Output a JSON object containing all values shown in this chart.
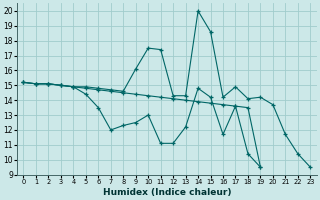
{
  "xlabel": "Humidex (Indice chaleur)",
  "bg_color": "#cce8e8",
  "grid_color": "#a0cccc",
  "line_color": "#006666",
  "xlim": [
    -0.5,
    23.5
  ],
  "ylim": [
    9.0,
    20.5
  ],
  "xticks": [
    0,
    1,
    2,
    3,
    4,
    5,
    6,
    7,
    8,
    9,
    10,
    11,
    12,
    13,
    14,
    15,
    16,
    17,
    18,
    19,
    20,
    21,
    22,
    23
  ],
  "yticks": [
    9,
    10,
    11,
    12,
    13,
    14,
    15,
    16,
    17,
    18,
    19,
    20
  ],
  "line1": [
    [
      0,
      15.2
    ],
    [
      1,
      15.1
    ],
    [
      2,
      15.1
    ],
    [
      3,
      15.0
    ],
    [
      4,
      14.9
    ],
    [
      5,
      14.4
    ],
    [
      6,
      13.5
    ],
    [
      7,
      12.0
    ],
    [
      8,
      12.3
    ],
    [
      9,
      12.5
    ],
    [
      10,
      13.0
    ],
    [
      11,
      11.1
    ],
    [
      12,
      11.1
    ],
    [
      13,
      12.2
    ],
    [
      14,
      14.8
    ],
    [
      15,
      14.2
    ],
    [
      16,
      11.7
    ],
    [
      17,
      13.6
    ],
    [
      18,
      10.4
    ],
    [
      19,
      9.5
    ]
  ],
  "line2": [
    [
      0,
      15.2
    ],
    [
      1,
      15.1
    ],
    [
      2,
      15.1
    ],
    [
      3,
      15.0
    ],
    [
      4,
      14.9
    ],
    [
      5,
      14.8
    ],
    [
      6,
      14.7
    ],
    [
      7,
      14.6
    ],
    [
      8,
      14.5
    ],
    [
      9,
      14.4
    ],
    [
      10,
      14.3
    ],
    [
      11,
      14.2
    ],
    [
      12,
      14.1
    ],
    [
      13,
      14.0
    ],
    [
      14,
      13.9
    ],
    [
      15,
      13.8
    ],
    [
      16,
      13.7
    ],
    [
      17,
      13.6
    ],
    [
      18,
      13.5
    ],
    [
      19,
      9.5
    ]
  ],
  "line3": [
    [
      0,
      15.2
    ],
    [
      1,
      15.1
    ],
    [
      2,
      15.1
    ],
    [
      3,
      15.0
    ],
    [
      4,
      14.9
    ],
    [
      5,
      14.9
    ],
    [
      6,
      14.8
    ],
    [
      7,
      14.7
    ],
    [
      8,
      14.6
    ],
    [
      9,
      16.1
    ],
    [
      10,
      17.5
    ],
    [
      11,
      17.4
    ],
    [
      12,
      14.3
    ],
    [
      13,
      14.3
    ],
    [
      14,
      20.0
    ],
    [
      15,
      18.6
    ],
    [
      16,
      14.2
    ],
    [
      17,
      14.9
    ],
    [
      18,
      14.1
    ],
    [
      19,
      14.2
    ],
    [
      20,
      13.7
    ],
    [
      21,
      11.7
    ],
    [
      22,
      10.4
    ],
    [
      23,
      9.5
    ]
  ]
}
